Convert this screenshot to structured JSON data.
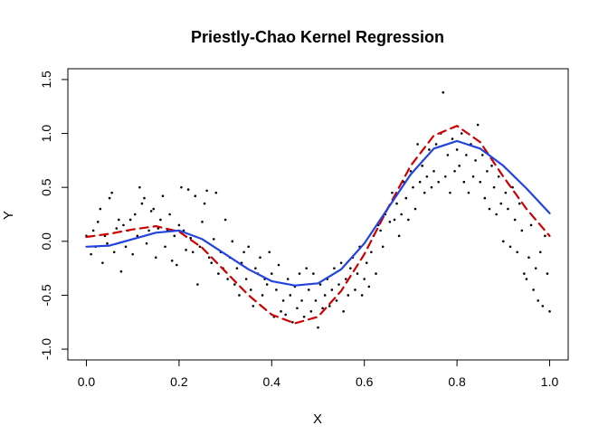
{
  "chart_data": {
    "type": "scatter",
    "title": "Priestly-Chao Kernel Regression",
    "xlabel": "X",
    "ylabel": "Y",
    "xlim": [
      -0.04,
      1.04
    ],
    "ylim": [
      -1.1,
      1.6
    ],
    "x_ticks": [
      0.0,
      0.2,
      0.4,
      0.6,
      0.8,
      1.0
    ],
    "x_tick_labels": [
      "0.0",
      "0.2",
      "0.4",
      "0.6",
      "0.8",
      "1.0"
    ],
    "y_ticks": [
      -1.0,
      -0.5,
      0.0,
      0.5,
      1.0,
      1.5
    ],
    "y_tick_labels": [
      "-1.0",
      "-0.5",
      "0.0",
      "0.5",
      "1.0",
      "1.5"
    ],
    "grid": false,
    "colors": {
      "points": "#000000",
      "dashed_series": "#cc0000",
      "solid_series": "#2244dd"
    },
    "series": [
      {
        "style": "dashed",
        "color": "#cc0000",
        "x": [
          0.0,
          0.05,
          0.1,
          0.15,
          0.2,
          0.25,
          0.3,
          0.35,
          0.4,
          0.45,
          0.5,
          0.55,
          0.6,
          0.65,
          0.7,
          0.75,
          0.8,
          0.85,
          0.9,
          0.95,
          1.0
        ],
        "y": [
          0.04,
          0.07,
          0.11,
          0.14,
          0.09,
          -0.06,
          -0.28,
          -0.5,
          -0.68,
          -0.76,
          -0.7,
          -0.46,
          -0.12,
          0.3,
          0.7,
          0.98,
          1.07,
          0.92,
          0.6,
          0.3,
          0.05
        ]
      },
      {
        "style": "solid",
        "color": "#2244dd",
        "x": [
          0.0,
          0.05,
          0.1,
          0.15,
          0.2,
          0.25,
          0.3,
          0.35,
          0.4,
          0.45,
          0.5,
          0.55,
          0.6,
          0.65,
          0.7,
          0.75,
          0.8,
          0.85,
          0.9,
          0.95,
          1.0
        ],
        "y": [
          -0.05,
          -0.04,
          0.02,
          0.08,
          0.1,
          0.02,
          -0.12,
          -0.26,
          -0.37,
          -0.41,
          -0.39,
          -0.26,
          -0.02,
          0.3,
          0.62,
          0.86,
          0.93,
          0.86,
          0.7,
          0.49,
          0.26
        ]
      }
    ],
    "points": [
      [
        0.0,
        0.05
      ],
      [
        0.01,
        -0.12
      ],
      [
        0.015,
        0.1
      ],
      [
        0.02,
        -0.05
      ],
      [
        0.025,
        0.18
      ],
      [
        0.03,
        0.3
      ],
      [
        0.035,
        -0.2
      ],
      [
        0.04,
        0.05
      ],
      [
        0.045,
        -0.02
      ],
      [
        0.05,
        0.4
      ],
      [
        0.055,
        0.45
      ],
      [
        0.06,
        -0.1
      ],
      [
        0.065,
        0.12
      ],
      [
        0.07,
        0.2
      ],
      [
        0.075,
        -0.28
      ],
      [
        0.08,
        0.15
      ],
      [
        0.085,
        -0.05
      ],
      [
        0.09,
        0.1
      ],
      [
        0.095,
        0.2
      ],
      [
        0.1,
        -0.12
      ],
      [
        0.105,
        0.25
      ],
      [
        0.11,
        0.05
      ],
      [
        0.115,
        0.5
      ],
      [
        0.12,
        0.35
      ],
      [
        0.125,
        0.4
      ],
      [
        0.13,
        -0.02
      ],
      [
        0.135,
        0.1
      ],
      [
        0.14,
        0.28
      ],
      [
        0.145,
        0.3
      ],
      [
        0.15,
        -0.15
      ],
      [
        0.155,
        0.12
      ],
      [
        0.16,
        0.2
      ],
      [
        0.165,
        0.42
      ],
      [
        0.17,
        -0.05
      ],
      [
        0.175,
        0.1
      ],
      [
        0.18,
        0.25
      ],
      [
        0.185,
        -0.18
      ],
      [
        0.19,
        0.05
      ],
      [
        0.195,
        -0.22
      ],
      [
        0.2,
        0.15
      ],
      [
        0.205,
        0.5
      ],
      [
        0.21,
        0.1
      ],
      [
        0.215,
        -0.08
      ],
      [
        0.22,
        0.48
      ],
      [
        0.225,
        0.03
      ],
      [
        0.23,
        -0.1
      ],
      [
        0.235,
        0.42
      ],
      [
        0.24,
        -0.4
      ],
      [
        0.245,
        -0.05
      ],
      [
        0.25,
        0.18
      ],
      [
        0.255,
        0.35
      ],
      [
        0.26,
        0.47
      ],
      [
        0.265,
        -0.15
      ],
      [
        0.27,
        -0.2
      ],
      [
        0.275,
        0.02
      ],
      [
        0.28,
        0.45
      ],
      [
        0.285,
        -0.3
      ],
      [
        0.29,
        -0.1
      ],
      [
        0.295,
        -0.25
      ],
      [
        0.3,
        0.2
      ],
      [
        0.305,
        -0.35
      ],
      [
        0.31,
        -0.15
      ],
      [
        0.315,
        0.0
      ],
      [
        0.32,
        -0.4
      ],
      [
        0.325,
        -0.25
      ],
      [
        0.33,
        -0.5
      ],
      [
        0.335,
        -0.2
      ],
      [
        0.34,
        -0.1
      ],
      [
        0.345,
        -0.35
      ],
      [
        0.35,
        -0.05
      ],
      [
        0.355,
        -0.45
      ],
      [
        0.36,
        -0.6
      ],
      [
        0.365,
        -0.25
      ],
      [
        0.37,
        -0.3
      ],
      [
        0.375,
        -0.15
      ],
      [
        0.38,
        -0.5
      ],
      [
        0.385,
        -0.35
      ],
      [
        0.39,
        -0.4
      ],
      [
        0.395,
        -0.1
      ],
      [
        0.4,
        -0.3
      ],
      [
        0.405,
        -0.7
      ],
      [
        0.41,
        -0.45
      ],
      [
        0.415,
        -0.22
      ],
      [
        0.42,
        -0.65
      ],
      [
        0.425,
        -0.55
      ],
      [
        0.43,
        -0.68
      ],
      [
        0.435,
        -0.35
      ],
      [
        0.44,
        -0.5
      ],
      [
        0.445,
        -0.75
      ],
      [
        0.45,
        -0.42
      ],
      [
        0.455,
        -0.62
      ],
      [
        0.46,
        -0.3
      ],
      [
        0.465,
        -0.55
      ],
      [
        0.47,
        -0.7
      ],
      [
        0.475,
        -0.25
      ],
      [
        0.48,
        -0.45
      ],
      [
        0.485,
        -0.65
      ],
      [
        0.49,
        -0.3
      ],
      [
        0.495,
        -0.55
      ],
      [
        0.5,
        -0.8
      ],
      [
        0.505,
        -0.4
      ],
      [
        0.51,
        -0.62
      ],
      [
        0.515,
        -0.5
      ],
      [
        0.52,
        -0.35
      ],
      [
        0.525,
        -0.6
      ],
      [
        0.53,
        -0.45
      ],
      [
        0.535,
        -0.25
      ],
      [
        0.54,
        -0.55
      ],
      [
        0.545,
        -0.4
      ],
      [
        0.55,
        -0.2
      ],
      [
        0.555,
        -0.65
      ],
      [
        0.56,
        -0.35
      ],
      [
        0.565,
        -0.5
      ],
      [
        0.57,
        -0.25
      ],
      [
        0.575,
        -0.15
      ],
      [
        0.58,
        -0.45
      ],
      [
        0.585,
        -0.3
      ],
      [
        0.59,
        -0.05
      ],
      [
        0.595,
        -0.5
      ],
      [
        0.6,
        -0.35
      ],
      [
        0.605,
        -0.2
      ],
      [
        0.61,
        -0.42
      ],
      [
        0.615,
        -0.1
      ],
      [
        0.62,
        0.05
      ],
      [
        0.625,
        -0.3
      ],
      [
        0.63,
        0.15
      ],
      [
        0.635,
        0.1
      ],
      [
        0.64,
        -0.05
      ],
      [
        0.645,
        0.25
      ],
      [
        0.65,
        0.3
      ],
      [
        0.655,
        0.18
      ],
      [
        0.66,
        0.45
      ],
      [
        0.665,
        0.2
      ],
      [
        0.67,
        0.35
      ],
      [
        0.675,
        0.05
      ],
      [
        0.68,
        0.25
      ],
      [
        0.685,
        0.55
      ],
      [
        0.69,
        0.4
      ],
      [
        0.695,
        0.2
      ],
      [
        0.7,
        0.65
      ],
      [
        0.705,
        0.5
      ],
      [
        0.71,
        0.3
      ],
      [
        0.715,
        0.9
      ],
      [
        0.72,
        0.55
      ],
      [
        0.725,
        0.7
      ],
      [
        0.73,
        0.45
      ],
      [
        0.735,
        0.6
      ],
      [
        0.74,
        0.85
      ],
      [
        0.745,
        0.5
      ],
      [
        0.75,
        0.65
      ],
      [
        0.755,
        0.9
      ],
      [
        0.76,
        0.55
      ],
      [
        0.765,
        1.0
      ],
      [
        0.77,
        1.38
      ],
      [
        0.775,
        0.6
      ],
      [
        0.78,
        0.8
      ],
      [
        0.785,
        0.45
      ],
      [
        0.79,
        0.95
      ],
      [
        0.795,
        0.65
      ],
      [
        0.8,
        0.85
      ],
      [
        0.805,
        0.7
      ],
      [
        0.81,
        1.0
      ],
      [
        0.815,
        0.55
      ],
      [
        0.82,
        0.8
      ],
      [
        0.825,
        0.45
      ],
      [
        0.83,
        0.9
      ],
      [
        0.835,
        0.6
      ],
      [
        0.84,
        0.75
      ],
      [
        0.845,
        1.08
      ],
      [
        0.85,
        0.55
      ],
      [
        0.855,
        0.8
      ],
      [
        0.86,
        0.4
      ],
      [
        0.865,
        0.65
      ],
      [
        0.87,
        0.3
      ],
      [
        0.875,
        0.7
      ],
      [
        0.88,
        0.5
      ],
      [
        0.885,
        0.25
      ],
      [
        0.89,
        0.6
      ],
      [
        0.895,
        0.35
      ],
      [
        0.9,
        0.0
      ],
      [
        0.905,
        0.45
      ],
      [
        0.91,
        0.3
      ],
      [
        0.915,
        -0.05
      ],
      [
        0.92,
        0.5
      ],
      [
        0.925,
        0.2
      ],
      [
        0.93,
        -0.1
      ],
      [
        0.935,
        0.35
      ],
      [
        0.94,
        0.1
      ],
      [
        0.945,
        -0.3
      ],
      [
        0.95,
        -0.35
      ],
      [
        0.955,
        -0.15
      ],
      [
        0.96,
        0.15
      ],
      [
        0.965,
        -0.45
      ],
      [
        0.97,
        -0.25
      ],
      [
        0.975,
        -0.55
      ],
      [
        0.98,
        -0.1
      ],
      [
        0.985,
        -0.6
      ],
      [
        0.99,
        0.05
      ],
      [
        0.995,
        -0.3
      ],
      [
        1.0,
        -0.65
      ]
    ]
  }
}
